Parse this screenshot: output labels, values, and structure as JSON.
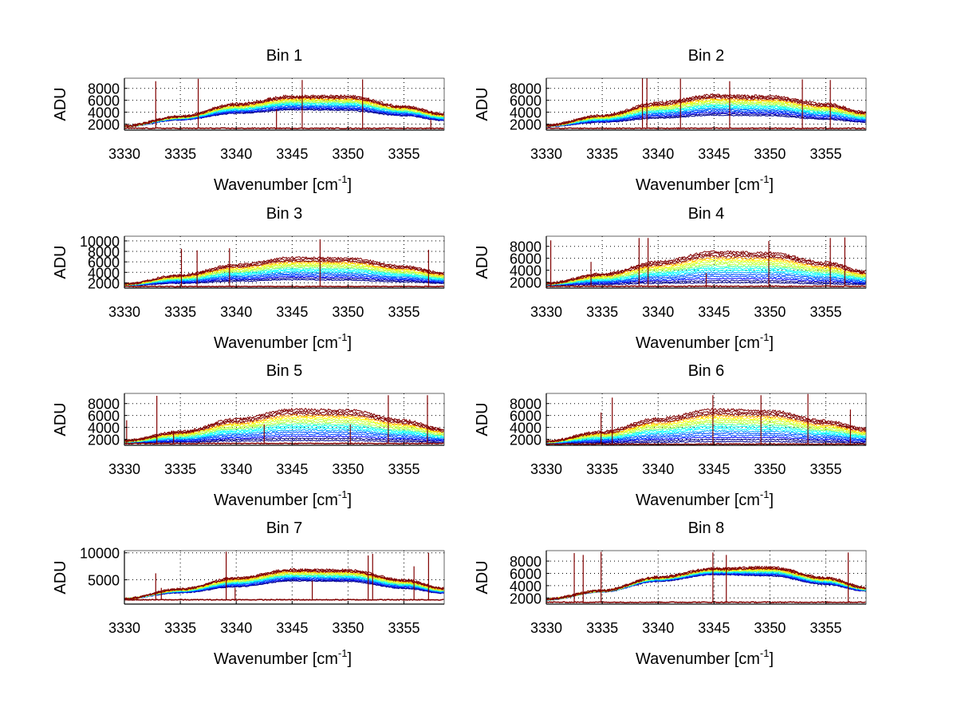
{
  "chart_data": [
    {
      "type": "line",
      "title": "Bin 1",
      "xlabel": "Wavenumber [cm-1]",
      "ylabel": "ADU",
      "xlim": [
        3330,
        3358.6
      ],
      "ylim": [
        1000,
        9700
      ],
      "xticks": [
        3330,
        3335,
        3340,
        3345,
        3350,
        3355
      ],
      "yticks": [
        2000,
        4000,
        6000,
        8000
      ],
      "grid": true,
      "envelope_x": [
        3330,
        3335,
        3340,
        3345,
        3350,
        3355,
        3358.6
      ],
      "upper_envelope": [
        1700,
        3300,
        5400,
        6700,
        6700,
        5000,
        3700
      ],
      "lower_envelope": [
        1600,
        2700,
        3800,
        4400,
        4300,
        3400,
        2600
      ],
      "baseline": 1300,
      "spikes": [
        {
          "x": 3332.8,
          "y": 9200
        },
        {
          "x": 3336.6,
          "y": 9600
        },
        {
          "x": 3343.6,
          "y": 4500
        },
        {
          "x": 3345.9,
          "y": 9400
        },
        {
          "x": 3351.3,
          "y": 9500
        },
        {
          "x": 3357.4,
          "y": 2700
        }
      ]
    },
    {
      "type": "line",
      "title": "Bin 2",
      "xlabel": "Wavenumber [cm-1]",
      "ylabel": "ADU",
      "xlim": [
        3330,
        3358.6
      ],
      "ylim": [
        1000,
        9700
      ],
      "xticks": [
        3330,
        3335,
        3340,
        3345,
        3350,
        3355
      ],
      "yticks": [
        2000,
        4000,
        6000,
        8000
      ],
      "grid": true,
      "envelope_x": [
        3330,
        3335,
        3340,
        3345,
        3350,
        3355,
        3358.6
      ],
      "upper_envelope": [
        1800,
        3500,
        5600,
        6900,
        6700,
        5400,
        4000
      ],
      "lower_envelope": [
        1600,
        2300,
        3000,
        3500,
        3400,
        2800,
        2300
      ],
      "baseline": 1300,
      "spikes": [
        {
          "x": 3338.6,
          "y": 9700
        },
        {
          "x": 3339.0,
          "y": 9700
        },
        {
          "x": 3342.0,
          "y": 9600
        },
        {
          "x": 3346.4,
          "y": 9200
        },
        {
          "x": 3352.9,
          "y": 9500
        },
        {
          "x": 3355.4,
          "y": 9400
        }
      ]
    },
    {
      "type": "line",
      "title": "Bin 3",
      "xlabel": "Wavenumber [cm-1]",
      "ylabel": "ADU",
      "xlim": [
        3330,
        3358.6
      ],
      "ylim": [
        1000,
        10900
      ],
      "xticks": [
        3330,
        3335,
        3340,
        3345,
        3350,
        3355
      ],
      "yticks": [
        2000,
        4000,
        6000,
        8000,
        10000
      ],
      "grid": true,
      "envelope_x": [
        3330,
        3335,
        3340,
        3345,
        3350,
        3355,
        3358.6
      ],
      "upper_envelope": [
        1800,
        3500,
        5500,
        6800,
        6700,
        5200,
        3900
      ],
      "lower_envelope": [
        1500,
        1900,
        2300,
        2600,
        2500,
        2200,
        1900
      ],
      "baseline": 1300,
      "spikes": [
        {
          "x": 3335.1,
          "y": 8500
        },
        {
          "x": 3336.5,
          "y": 8200
        },
        {
          "x": 3339.4,
          "y": 8600
        },
        {
          "x": 3347.5,
          "y": 10300
        },
        {
          "x": 3357.2,
          "y": 8300
        }
      ]
    },
    {
      "type": "line",
      "title": "Bin 4",
      "xlabel": "Wavenumber [cm-1]",
      "ylabel": "ADU",
      "xlim": [
        3330,
        3358.6
      ],
      "ylim": [
        1000,
        9700
      ],
      "xticks": [
        3330,
        3335,
        3340,
        3345,
        3350,
        3355
      ],
      "yticks": [
        2000,
        4000,
        6000,
        8000
      ],
      "grid": true,
      "envelope_x": [
        3330,
        3335,
        3340,
        3345,
        3350,
        3355,
        3358.6
      ],
      "upper_envelope": [
        1800,
        3400,
        5400,
        7100,
        6900,
        5300,
        3800
      ],
      "lower_envelope": [
        1500,
        1600,
        1800,
        1900,
        1900,
        1700,
        1600
      ],
      "baseline": 1300,
      "spikes": [
        {
          "x": 3330.4,
          "y": 9000
        },
        {
          "x": 3334.0,
          "y": 5400
        },
        {
          "x": 3338.3,
          "y": 9400
        },
        {
          "x": 3339.1,
          "y": 9400
        },
        {
          "x": 3344.3,
          "y": 3500
        },
        {
          "x": 3349.9,
          "y": 8900
        },
        {
          "x": 3355.4,
          "y": 9400
        },
        {
          "x": 3356.7,
          "y": 9500
        }
      ]
    },
    {
      "type": "line",
      "title": "Bin 5",
      "xlabel": "Wavenumber [cm-1]",
      "ylabel": "ADU",
      "xlim": [
        3330,
        3358.6
      ],
      "ylim": [
        1000,
        9700
      ],
      "xticks": [
        3330,
        3335,
        3340,
        3345,
        3350,
        3355
      ],
      "yticks": [
        2000,
        4000,
        6000,
        8000
      ],
      "grid": true,
      "envelope_x": [
        3330,
        3335,
        3340,
        3345,
        3350,
        3355,
        3358.6
      ],
      "upper_envelope": [
        1800,
        3300,
        5400,
        7000,
        6900,
        5200,
        3700
      ],
      "lower_envelope": [
        1400,
        1500,
        1700,
        1800,
        1800,
        1600,
        1500
      ],
      "baseline": 1300,
      "spikes": [
        {
          "x": 3330.2,
          "y": 5200
        },
        {
          "x": 3332.9,
          "y": 9300
        },
        {
          "x": 3334.4,
          "y": 3200
        },
        {
          "x": 3342.5,
          "y": 4500
        },
        {
          "x": 3350.2,
          "y": 4500
        },
        {
          "x": 3353.6,
          "y": 9400
        },
        {
          "x": 3357.1,
          "y": 9400
        }
      ]
    },
    {
      "type": "line",
      "title": "Bin 6",
      "xlabel": "Wavenumber [cm-1]",
      "ylabel": "ADU",
      "xlim": [
        3330,
        3358.6
      ],
      "ylim": [
        1000,
        9700
      ],
      "xticks": [
        3330,
        3335,
        3340,
        3345,
        3350,
        3355
      ],
      "yticks": [
        2000,
        4000,
        6000,
        8000
      ],
      "grid": true,
      "envelope_x": [
        3330,
        3335,
        3340,
        3345,
        3350,
        3355,
        3358.6
      ],
      "upper_envelope": [
        1700,
        3300,
        5500,
        7000,
        6800,
        5100,
        3800
      ],
      "lower_envelope": [
        1300,
        1400,
        1500,
        1600,
        1600,
        1500,
        1400
      ],
      "baseline": 1200,
      "spikes": [
        {
          "x": 3334.9,
          "y": 6500
        },
        {
          "x": 3335.9,
          "y": 9000
        },
        {
          "x": 3344.9,
          "y": 9400
        },
        {
          "x": 3349.2,
          "y": 9400
        },
        {
          "x": 3353.4,
          "y": 9600
        },
        {
          "x": 3357.2,
          "y": 7000
        }
      ]
    },
    {
      "type": "line",
      "title": "Bin 7",
      "xlabel": "Wavenumber [cm-1]",
      "ylabel": "ADU",
      "xlim": [
        3330,
        3358.6
      ],
      "ylim": [
        500,
        10400
      ],
      "xticks": [
        3330,
        3335,
        3340,
        3345,
        3350,
        3355
      ],
      "yticks": [
        5000,
        10000
      ],
      "grid": true,
      "envelope_x": [
        3330,
        3335,
        3340,
        3345,
        3350,
        3355,
        3358.6
      ],
      "upper_envelope": [
        1500,
        3300,
        5400,
        6900,
        6800,
        5000,
        3400
      ],
      "lower_envelope": [
        1500,
        2600,
        3700,
        4800,
        4700,
        3400,
        2500
      ],
      "baseline": 1300,
      "spikes": [
        {
          "x": 3332.8,
          "y": 6200
        },
        {
          "x": 3333.3,
          "y": 3500
        },
        {
          "x": 3339.1,
          "y": 10200
        },
        {
          "x": 3339.9,
          "y": 3500
        },
        {
          "x": 3346.8,
          "y": 4800
        },
        {
          "x": 3351.8,
          "y": 9500
        },
        {
          "x": 3352.2,
          "y": 9800
        },
        {
          "x": 3355.9,
          "y": 7500
        },
        {
          "x": 3357.2,
          "y": 10000
        }
      ]
    },
    {
      "type": "line",
      "title": "Bin 8",
      "xlabel": "Wavenumber [cm-1]",
      "ylabel": "ADU",
      "xlim": [
        3330,
        3358.6
      ],
      "ylim": [
        1000,
        9700
      ],
      "xticks": [
        3330,
        3335,
        3340,
        3345,
        3350,
        3355
      ],
      "yticks": [
        2000,
        4000,
        6000,
        8000
      ],
      "grid": true,
      "envelope_x": [
        3330,
        3335,
        3340,
        3345,
        3350,
        3355,
        3358.6
      ],
      "upper_envelope": [
        1800,
        3200,
        5400,
        6800,
        7000,
        5300,
        3700
      ],
      "lower_envelope": [
        1700,
        3000,
        4700,
        5800,
        5600,
        4200,
        3100
      ],
      "baseline": 1300,
      "spikes": [
        {
          "x": 3332.5,
          "y": 9300
        },
        {
          "x": 3333.3,
          "y": 9000
        },
        {
          "x": 3334.9,
          "y": 9500
        },
        {
          "x": 3344.9,
          "y": 9400
        },
        {
          "x": 3346.1,
          "y": 9000
        },
        {
          "x": 3357.0,
          "y": 9400
        }
      ]
    }
  ],
  "labels": {
    "xlabel_main": "Wavenumber [cm",
    "xlabel_sup": "-1",
    "xlabel_close": "]",
    "ylabel": "ADU"
  }
}
